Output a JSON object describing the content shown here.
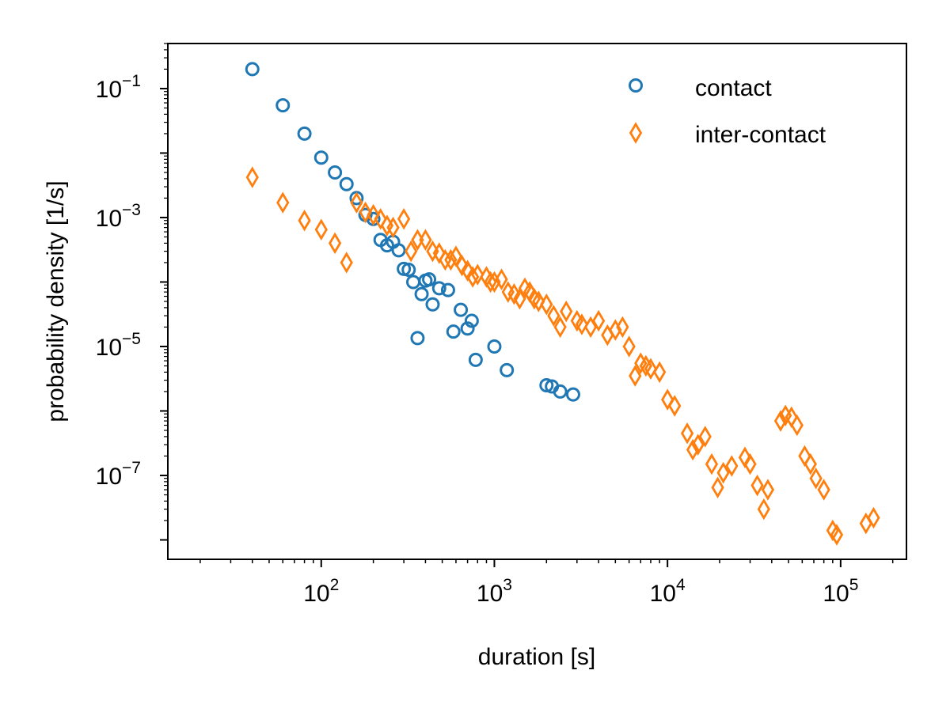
{
  "chart_data": {
    "type": "scatter",
    "title": "",
    "xlabel": "duration [s]",
    "ylabel": "probability density [1/s]",
    "xscale": "log",
    "yscale": "log",
    "xlim": [
      13,
      240000
    ],
    "ylim": [
      5e-09,
      0.5
    ],
    "grid": false,
    "legend_position": "top-right",
    "x_tick_labels": [
      {
        "base": "10",
        "exp": "2",
        "value": 100
      },
      {
        "base": "10",
        "exp": "3",
        "value": 1000
      },
      {
        "base": "10",
        "exp": "4",
        "value": 10000
      },
      {
        "base": "10",
        "exp": "5",
        "value": 100000
      }
    ],
    "y_tick_labels": [
      {
        "base": "10",
        "exp": "−1",
        "value": 0.1
      },
      {
        "base": "10",
        "exp": "−3",
        "value": 0.001
      },
      {
        "base": "10",
        "exp": "−5",
        "value": 1e-05
      },
      {
        "base": "10",
        "exp": "−7",
        "value": 1e-07
      }
    ],
    "series": [
      {
        "name": "contact",
        "marker": "circle",
        "color": "#1f77b4",
        "points": [
          [
            40,
            0.2
          ],
          [
            60,
            0.055
          ],
          [
            80,
            0.02
          ],
          [
            100,
            0.0085
          ],
          [
            120,
            0.005
          ],
          [
            140,
            0.0033
          ],
          [
            160,
            0.002
          ],
          [
            180,
            0.0011
          ],
          [
            200,
            0.00095
          ],
          [
            220,
            0.00045
          ],
          [
            240,
            0.00037
          ],
          [
            260,
            0.00042
          ],
          [
            280,
            0.00031
          ],
          [
            300,
            0.00016
          ],
          [
            320,
            0.000155
          ],
          [
            340,
            0.0001
          ],
          [
            360,
            1.35e-05
          ],
          [
            380,
            6.5e-05
          ],
          [
            400,
            0.000105
          ],
          [
            420,
            0.00011
          ],
          [
            440,
            4.5e-05
          ],
          [
            480,
            8e-05
          ],
          [
            540,
            7.5e-05
          ],
          [
            580,
            1.7e-05
          ],
          [
            640,
            3.7e-05
          ],
          [
            700,
            1.9e-05
          ],
          [
            740,
            2.5e-05
          ],
          [
            780,
            6.2e-06
          ],
          [
            1000,
            1e-05
          ],
          [
            1180,
            4.3e-06
          ],
          [
            2000,
            2.5e-06
          ],
          [
            2150,
            2.4e-06
          ],
          [
            2400,
            2e-06
          ],
          [
            2850,
            1.8e-06
          ]
        ]
      },
      {
        "name": "inter-contact",
        "marker": "diamond",
        "color": "#ff7f0e",
        "points": [
          [
            40,
            0.0042
          ],
          [
            60,
            0.0017
          ],
          [
            80,
            0.0009
          ],
          [
            100,
            0.00065
          ],
          [
            120,
            0.0004
          ],
          [
            140,
            0.0002
          ],
          [
            160,
            0.0017
          ],
          [
            180,
            0.0012
          ],
          [
            200,
            0.0011
          ],
          [
            220,
            0.00095
          ],
          [
            240,
            0.00075
          ],
          [
            260,
            0.0007
          ],
          [
            300,
            0.00095
          ],
          [
            330,
            0.0003
          ],
          [
            360,
            0.00045
          ],
          [
            400,
            0.00045
          ],
          [
            440,
            0.0003
          ],
          [
            480,
            0.00028
          ],
          [
            520,
            0.00022
          ],
          [
            560,
            0.00022
          ],
          [
            600,
            0.00025
          ],
          [
            650,
            0.00018
          ],
          [
            700,
            0.00015
          ],
          [
            750,
            0.00012
          ],
          [
            800,
            0.00013
          ],
          [
            900,
            0.00012
          ],
          [
            950,
            0.0001
          ],
          [
            1000,
            0.0001
          ],
          [
            1100,
            0.00011
          ],
          [
            1200,
            7e-05
          ],
          [
            1300,
            6.5e-05
          ],
          [
            1400,
            5.5e-05
          ],
          [
            1500,
            8e-05
          ],
          [
            1600,
            7e-05
          ],
          [
            1700,
            5.5e-05
          ],
          [
            1800,
            5e-05
          ],
          [
            2000,
            4.5e-05
          ],
          [
            2200,
            3e-05
          ],
          [
            2400,
            2e-05
          ],
          [
            2600,
            3.5e-05
          ],
          [
            3000,
            2.5e-05
          ],
          [
            3200,
            2.2e-05
          ],
          [
            3600,
            2e-05
          ],
          [
            4000,
            2.5e-05
          ],
          [
            4500,
            1.5e-05
          ],
          [
            5000,
            1.8e-05
          ],
          [
            5500,
            2e-05
          ],
          [
            6000,
            1e-05
          ],
          [
            6500,
            3.5e-06
          ],
          [
            7000,
            5.5e-06
          ],
          [
            7500,
            5e-06
          ],
          [
            8000,
            4.5e-06
          ],
          [
            9000,
            4e-06
          ],
          [
            10000,
            1.5e-06
          ],
          [
            11000,
            1.2e-06
          ],
          [
            13000,
            4.5e-07
          ],
          [
            14000,
            2.5e-07
          ],
          [
            15000,
            3e-07
          ],
          [
            16500,
            4e-07
          ],
          [
            18000,
            1.5e-07
          ],
          [
            19500,
            6.5e-08
          ],
          [
            21000,
            1.1e-07
          ],
          [
            23500,
            1.4e-07
          ],
          [
            28000,
            1.9e-07
          ],
          [
            30000,
            1.5e-07
          ],
          [
            33000,
            7e-08
          ],
          [
            36000,
            3e-08
          ],
          [
            38000,
            6e-08
          ],
          [
            45000,
            7e-07
          ],
          [
            48000,
            8.5e-07
          ],
          [
            52000,
            8e-07
          ],
          [
            56000,
            6e-07
          ],
          [
            62000,
            2e-07
          ],
          [
            67000,
            1.5e-07
          ],
          [
            72000,
            9e-08
          ],
          [
            80000,
            6e-08
          ],
          [
            90000,
            1.4e-08
          ],
          [
            95000,
            1.2e-08
          ],
          [
            140000,
            1.8e-08
          ],
          [
            155000,
            2.2e-08
          ]
        ]
      }
    ]
  }
}
